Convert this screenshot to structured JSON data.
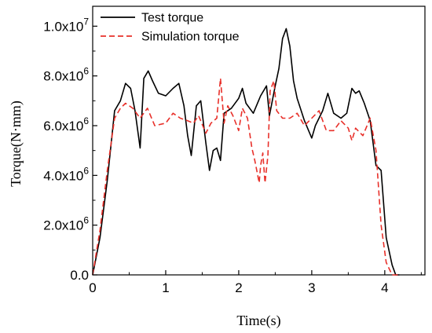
{
  "chart_data": {
    "type": "line",
    "xlabel": "Time(s)",
    "ylabel": "Torque(N·mm)",
    "xlim": [
      0,
      4.55
    ],
    "ylim": [
      0,
      10800000
    ],
    "x_ticks": [
      0,
      1,
      2,
      3,
      4
    ],
    "x_tick_labels": [
      "0",
      "1",
      "2",
      "3",
      "4"
    ],
    "y_ticks": [
      0,
      2000000,
      4000000,
      6000000,
      8000000,
      10000000
    ],
    "y_tick_labels": [
      "0.0",
      "2.0x10",
      "4.0x10",
      "6.0x10",
      "8.0x10",
      "1.0x10"
    ],
    "y_tick_exponents": [
      "",
      "6",
      "6",
      "6",
      "6",
      "7"
    ],
    "legend_position": "top-left",
    "series": [
      {
        "name": "Test torque",
        "color": "#000000",
        "style": "solid",
        "x": [
          0,
          0.1,
          0.2,
          0.3,
          0.38,
          0.45,
          0.52,
          0.58,
          0.65,
          0.7,
          0.76,
          0.82,
          0.9,
          1.0,
          1.1,
          1.18,
          1.25,
          1.3,
          1.35,
          1.42,
          1.48,
          1.55,
          1.6,
          1.65,
          1.7,
          1.75,
          1.8,
          1.9,
          2.0,
          2.05,
          2.1,
          2.2,
          2.3,
          2.38,
          2.42,
          2.5,
          2.55,
          2.6,
          2.65,
          2.7,
          2.75,
          2.8,
          2.9,
          3.0,
          3.05,
          3.15,
          3.22,
          3.3,
          3.4,
          3.48,
          3.55,
          3.6,
          3.65,
          3.72,
          3.8,
          3.88,
          3.95,
          4.02,
          4.1,
          4.15,
          4.2
        ],
        "y": [
          0,
          1500000,
          3800000,
          6600000,
          7000000,
          7700000,
          7500000,
          6600000,
          5100000,
          7900000,
          8200000,
          7800000,
          7300000,
          7200000,
          7500000,
          7700000,
          6800000,
          5600000,
          4800000,
          6800000,
          7000000,
          5300000,
          4200000,
          5000000,
          5100000,
          4600000,
          6500000,
          6700000,
          7100000,
          7500000,
          6900000,
          6500000,
          7200000,
          7600000,
          6400000,
          7600000,
          8300000,
          9500000,
          9900000,
          9200000,
          7800000,
          7100000,
          6200000,
          5500000,
          6000000,
          6600000,
          7300000,
          6500000,
          6300000,
          6500000,
          7500000,
          7300000,
          7400000,
          6900000,
          6200000,
          4400000,
          4200000,
          1500000,
          400000,
          0,
          0
        ]
      },
      {
        "name": "Simulation torque",
        "color": "#e8302a",
        "style": "dashed",
        "x": [
          0,
          0.1,
          0.2,
          0.3,
          0.38,
          0.45,
          0.55,
          0.65,
          0.75,
          0.85,
          1.0,
          1.1,
          1.2,
          1.3,
          1.38,
          1.45,
          1.55,
          1.62,
          1.7,
          1.75,
          1.8,
          1.85,
          1.92,
          2.0,
          2.05,
          2.12,
          2.18,
          2.22,
          2.28,
          2.3,
          2.33,
          2.36,
          2.4,
          2.43,
          2.48,
          2.52,
          2.6,
          2.7,
          2.8,
          2.9,
          3.0,
          3.1,
          3.2,
          3.3,
          3.4,
          3.5,
          3.55,
          3.6,
          3.7,
          3.8,
          3.88,
          3.95,
          4.02,
          4.1,
          4.15,
          4.2
        ],
        "y": [
          0,
          1800000,
          4200000,
          6300000,
          6700000,
          6900000,
          6700000,
          6300000,
          6700000,
          6000000,
          6100000,
          6500000,
          6300000,
          6200000,
          6100000,
          6400000,
          5700000,
          6100000,
          6300000,
          7900000,
          6100000,
          6800000,
          6400000,
          5800000,
          6700000,
          6300000,
          5100000,
          4600000,
          3700000,
          4400000,
          4900000,
          3700000,
          4800000,
          7400000,
          7800000,
          6600000,
          6300000,
          6300000,
          6500000,
          6000000,
          6300000,
          6600000,
          5800000,
          5800000,
          6200000,
          5900000,
          5400000,
          5900000,
          5600000,
          6300000,
          5000000,
          2000000,
          500000,
          0,
          0,
          0
        ]
      }
    ]
  }
}
